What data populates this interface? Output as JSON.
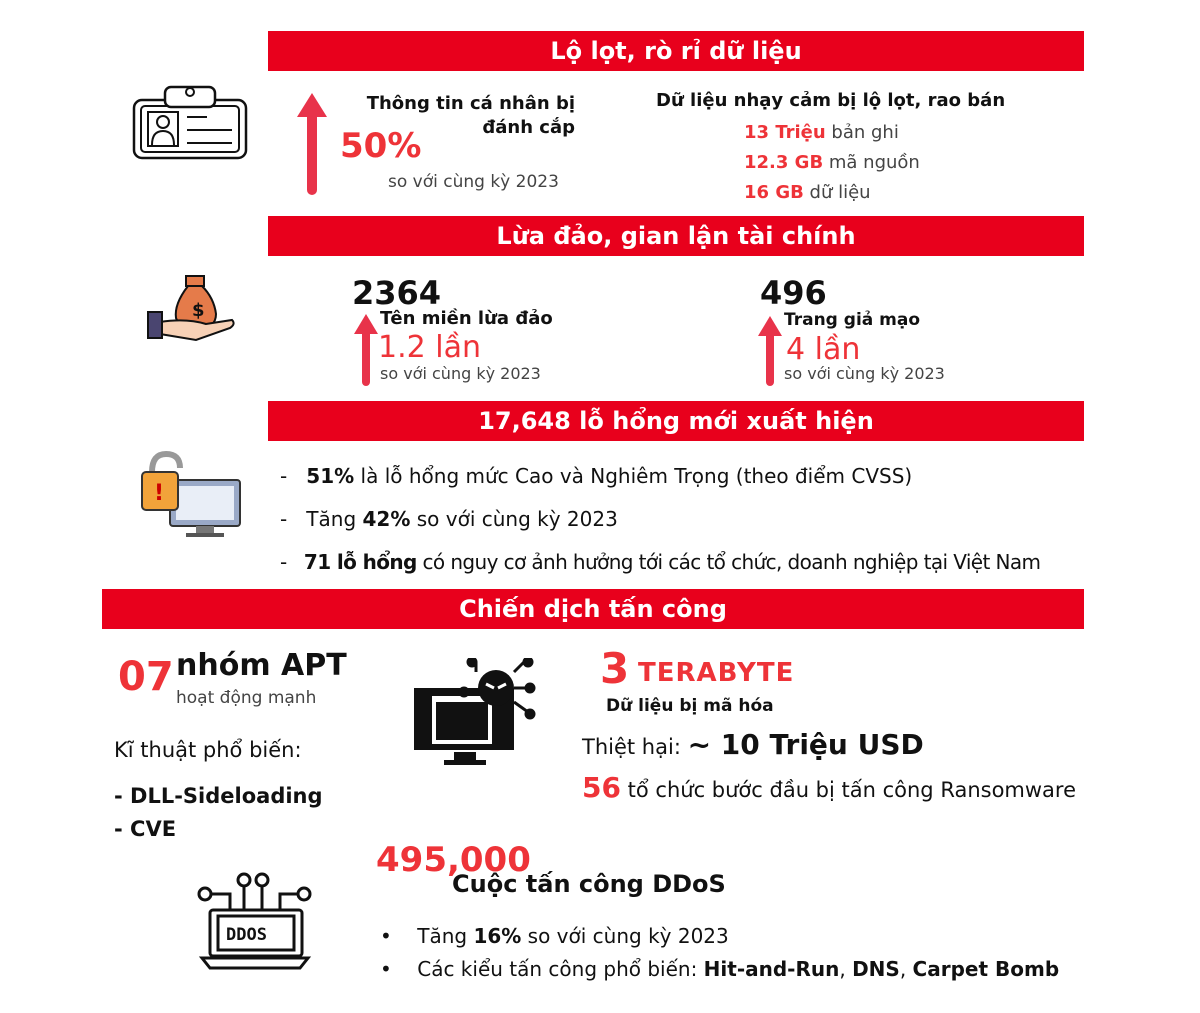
{
  "colors": {
    "banner": "#e8001c",
    "accent_text": "#ee3338",
    "arrow": "#e8334a"
  },
  "s1": {
    "title": "Lộ lọt, rò rỉ dữ liệu",
    "icon": "id-card-icon",
    "left_title": "Thông tin cá nhân bị đánh cắp",
    "left_value": "50%",
    "left_sub": "so với cùng kỳ 2023",
    "right_title": "Dữ liệu nhạy cảm bị lộ lọt, rao bán",
    "items": [
      {
        "value": "13 Triệu",
        "label": " bản ghi"
      },
      {
        "value": "12.3 GB",
        "label": " mã nguồn"
      },
      {
        "value": "16 GB",
        "label": " dữ liệu"
      }
    ]
  },
  "s2": {
    "title": "Lừa đảo, gian lận tài chính",
    "icon": "money-bag-hand-icon",
    "a": {
      "number": "2364",
      "label": "Tên miền lừa đảo",
      "value": "1.2 lần",
      "sub": "so với cùng kỳ 2023"
    },
    "b": {
      "number": "496",
      "label": "Trang giả mạo",
      "value": "4 lần",
      "sub": "so với cùng kỳ 2023"
    }
  },
  "s3": {
    "title": "17,648 lỗ hổng mới xuất hiện",
    "icon": "vulnerable-computer-icon",
    "items": [
      {
        "pre": "",
        "bold": "51%",
        "post": " là lỗ hổng mức Cao và Nghiêm Trọng (theo điểm CVSS)"
      },
      {
        "pre": "Tăng ",
        "bold": "42%",
        "post": " so với cùng kỳ 2023"
      },
      {
        "pre": "",
        "bold": "71 lỗ hổng",
        "post": " có nguy cơ ảnh hưởng tới các tổ chức, doanh nghiệp tại Việt Nam"
      }
    ]
  },
  "s4": {
    "title": "Chiến dịch tấn công",
    "apt_num": "07",
    "apt_label": "nhóm APT",
    "apt_sub": "hoạt động mạnh",
    "tech_label": "Kĩ thuật phổ biến:",
    "techs": [
      "- DLL-Sideloading",
      "- CVE"
    ],
    "ransom_icon": "ransomware-computer-icon",
    "tb_num": "3",
    "tb_label": "TERABYTE",
    "tb_sub": "Dữ liệu bị mã hóa",
    "damage_label": "Thiệt hại: ",
    "damage_value": "~ 10 Triệu USD",
    "org_num": "56",
    "org_label": " tổ chức bước đầu bị tấn công Ransomware",
    "ddos_icon": "ddos-laptop-icon",
    "ddos_icon_text": "DDOS",
    "ddos_num": "495,000",
    "ddos_label": "Cuộc tấn công DDoS",
    "ddos_items": [
      {
        "pre": "Tăng ",
        "bold": "16%",
        "post": " so với cùng kỳ 2023"
      },
      {
        "pre": "Các kiểu tấn công phổ biến: ",
        "bold": "Hit-and-Run",
        "post": ", ",
        "bold2": "DNS",
        "post2": ", ",
        "bold3": "Carpet Bomb"
      }
    ]
  }
}
